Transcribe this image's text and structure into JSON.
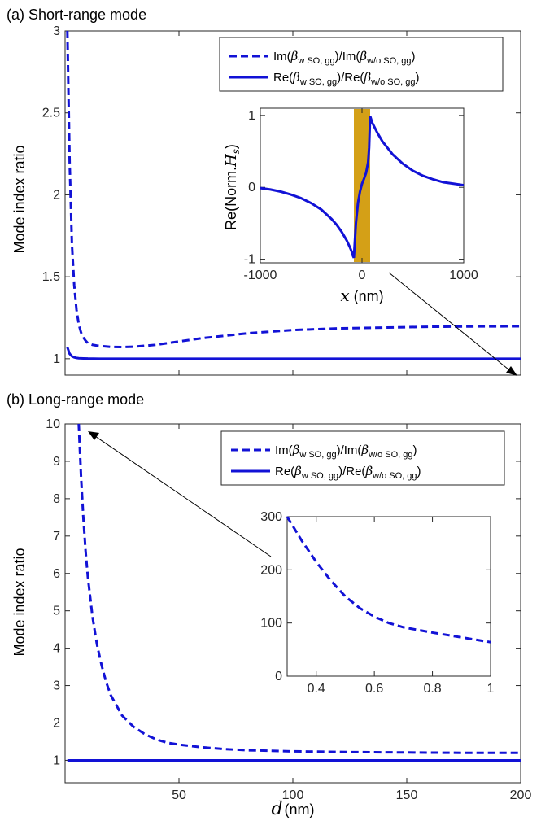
{
  "colors": {
    "series": "#1212d6",
    "slab": "#d4a017",
    "axis": "#262626"
  },
  "chart_data": [
    {
      "panel": "a",
      "title": "(a) Short-range mode",
      "type": "line",
      "ylabel": "Mode index ratio",
      "xlim": [
        0,
        200
      ],
      "ylim": [
        0.9,
        3
      ],
      "yticks": [
        "1",
        "1.5",
        "2",
        "2.5",
        "3"
      ],
      "legend": {
        "placement": "top-right",
        "entries": [
          {
            "style": "dashed",
            "parts": [
              "Im(",
              "β",
              "w SO, gg",
              ")/Im(",
              "β",
              "w/o SO, gg",
              ")"
            ]
          },
          {
            "style": "solid",
            "parts": [
              "Re(",
              "β",
              "w SO, gg",
              ")/Re(",
              "β",
              "w/o SO, gg",
              ")"
            ]
          }
        ]
      },
      "series": [
        {
          "name": "Im(βw SO, gg)/Im(βw/o SO, gg)",
          "style": "dashed",
          "x": [
            1,
            2,
            3,
            4,
            5,
            6,
            7,
            8,
            9,
            10,
            12,
            14,
            16,
            20,
            25,
            30,
            40,
            50,
            60,
            80,
            100,
            120,
            140,
            160,
            180,
            200
          ],
          "y": [
            3.0,
            2.2,
            1.7,
            1.45,
            1.3,
            1.21,
            1.16,
            1.13,
            1.11,
            1.095,
            1.085,
            1.08,
            1.077,
            1.072,
            1.071,
            1.073,
            1.085,
            1.105,
            1.125,
            1.155,
            1.175,
            1.185,
            1.19,
            1.195,
            1.197,
            1.198
          ]
        },
        {
          "name": "Re(βw SO, gg)/Re(βw/o SO, gg)",
          "style": "solid",
          "x": [
            1,
            2,
            3,
            4,
            5,
            6,
            8,
            10,
            15,
            20,
            50,
            100,
            150,
            200
          ],
          "y": [
            1.07,
            1.03,
            1.015,
            1.008,
            1.005,
            1.003,
            1.002,
            1.001,
            1.0,
            1.0,
            1.0,
            1.0,
            1.0,
            1.0
          ]
        }
      ],
      "inset": {
        "type": "line",
        "ylabel_parts": [
          "Re(Norm.",
          "H",
          "s",
          ")"
        ],
        "xlabel_parts": [
          "x",
          " (nm)"
        ],
        "xlim": [
          -1000,
          1000
        ],
        "ylim": [
          -1.05,
          1.1
        ],
        "xticks": [
          "-1000",
          "0",
          "1000"
        ],
        "yticks": [
          "-1",
          "0",
          "1"
        ],
        "slab_range": [
          -80,
          80
        ],
        "series": {
          "x": [
            -1000,
            -900,
            -800,
            -700,
            -600,
            -500,
            -400,
            -300,
            -250,
            -200,
            -150,
            -120,
            -100,
            -90,
            -80,
            -60,
            -40,
            -20,
            0,
            20,
            40,
            60,
            70,
            80,
            100,
            150,
            200,
            300,
            400,
            500,
            600,
            700,
            800,
            900,
            1000
          ],
          "y": [
            -0.01,
            -0.03,
            -0.06,
            -0.1,
            -0.15,
            -0.22,
            -0.31,
            -0.44,
            -0.52,
            -0.62,
            -0.74,
            -0.83,
            -0.9,
            -0.95,
            -0.98,
            -0.5,
            -0.22,
            -0.06,
            0.05,
            0.12,
            0.2,
            0.35,
            0.55,
            0.99,
            0.9,
            0.76,
            0.64,
            0.46,
            0.33,
            0.23,
            0.16,
            0.11,
            0.07,
            0.05,
            0.03
          ]
        }
      }
    },
    {
      "panel": "b",
      "title": "(b) Long-range mode",
      "type": "line",
      "ylabel": "Mode index ratio",
      "xlabel_parts": [
        "d",
        "(nm)"
      ],
      "xlim": [
        0,
        200
      ],
      "ylim": [
        0.4,
        10
      ],
      "xticks": [
        "50",
        "100",
        "150",
        "200"
      ],
      "yticks": [
        "1",
        "2",
        "3",
        "4",
        "5",
        "6",
        "7",
        "8",
        "9",
        "10"
      ],
      "legend": {
        "placement": "top-right",
        "entries": [
          {
            "style": "dashed",
            "parts": [
              "Im(",
              "β",
              "w SO, gg",
              ")/Im(",
              "β",
              "w/o SO, gg",
              ")"
            ]
          },
          {
            "style": "solid",
            "parts": [
              "Re(",
              "β",
              "w SO, gg",
              ")/Re(",
              "β",
              "w/o SO, gg",
              ")"
            ]
          }
        ]
      },
      "series": [
        {
          "name": "Im(βw SO, gg)/Im(βw/o SO, gg)",
          "style": "dashed",
          "x": [
            6,
            7,
            8,
            9,
            10,
            12,
            14,
            16,
            18,
            20,
            25,
            30,
            35,
            40,
            45,
            50,
            60,
            70,
            80,
            100,
            125,
            150,
            175,
            200
          ],
          "y": [
            10.0,
            8.6,
            7.5,
            6.6,
            5.9,
            4.85,
            4.1,
            3.55,
            3.1,
            2.75,
            2.2,
            1.9,
            1.7,
            1.56,
            1.47,
            1.42,
            1.35,
            1.3,
            1.27,
            1.24,
            1.22,
            1.21,
            1.2,
            1.2
          ]
        },
        {
          "name": "Re(βw SO, gg)/Re(βw/o SO, gg)",
          "style": "solid",
          "x": [
            1,
            200
          ],
          "y": [
            1.0,
            1.0
          ]
        }
      ],
      "inset": {
        "type": "line",
        "xlim": [
          0.3,
          1
        ],
        "ylim": [
          0,
          300
        ],
        "xticks": [
          "0.4",
          "0.6",
          "0.8",
          "1"
        ],
        "yticks": [
          "0",
          "100",
          "200",
          "300"
        ],
        "series": {
          "x": [
            0.3,
            0.35,
            0.4,
            0.45,
            0.5,
            0.55,
            0.6,
            0.65,
            0.7,
            0.8,
            0.9,
            1.0
          ],
          "y": [
            300,
            255,
            215,
            180,
            150,
            128,
            112,
            100,
            92,
            82,
            73,
            64
          ]
        }
      }
    }
  ]
}
